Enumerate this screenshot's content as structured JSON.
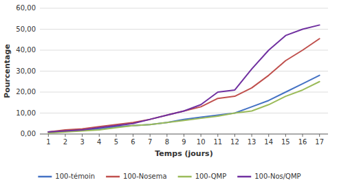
{
  "chart_data": {
    "type": "line",
    "x_label": "Temps (jours)",
    "y_label": "Pourcentage",
    "x": [
      1,
      2,
      3,
      4,
      5,
      6,
      7,
      8,
      9,
      10,
      11,
      12,
      13,
      14,
      15,
      16,
      17
    ],
    "series": [
      {
        "name": "100-témoin",
        "color": "#4472C4",
        "values": [
          1.0,
          1.5,
          2.0,
          2.5,
          3.5,
          4.0,
          4.5,
          5.5,
          7.0,
          8.0,
          9.0,
          10.0,
          13.0,
          16.0,
          20.0,
          24.0,
          28.0
        ]
      },
      {
        "name": "100-Nosema",
        "color": "#C0504D",
        "values": [
          1.0,
          2.0,
          2.5,
          3.5,
          4.5,
          5.5,
          7.0,
          9.0,
          11.0,
          13.0,
          17.0,
          18.0,
          22.0,
          28.0,
          35.0,
          40.0,
          45.5
        ]
      },
      {
        "name": "100-QMP",
        "color": "#9BBB59",
        "values": [
          0.5,
          1.0,
          1.5,
          2.0,
          3.0,
          4.0,
          4.5,
          5.5,
          6.5,
          7.5,
          8.5,
          10.0,
          11.0,
          14.0,
          18.0,
          21.0,
          25.0
        ]
      },
      {
        "name": "100-Nos/QMP",
        "color": "#7030A0",
        "values": [
          1.0,
          1.5,
          2.0,
          3.0,
          4.0,
          5.0,
          7.0,
          9.0,
          11.0,
          14.0,
          20.0,
          21.0,
          31.0,
          40.0,
          47.0,
          50.0,
          52.0
        ]
      }
    ],
    "xlim": [
      0.5,
      17.5
    ],
    "xticks": [
      1,
      2,
      3,
      4,
      5,
      6,
      7,
      8,
      9,
      10,
      11,
      12,
      13,
      14,
      15,
      16,
      17
    ],
    "ylim": [
      0,
      60
    ],
    "yticks": [
      {
        "value": 0,
        "label": "0,00"
      },
      {
        "value": 10,
        "label": "10,00"
      },
      {
        "value": 20,
        "label": "20,00"
      },
      {
        "value": 30,
        "label": "30,00"
      },
      {
        "value": 40,
        "label": "40,00"
      },
      {
        "value": 50,
        "label": "50,00"
      },
      {
        "value": 60,
        "label": "60,00"
      }
    ],
    "grid": true,
    "legend": "bottom"
  }
}
